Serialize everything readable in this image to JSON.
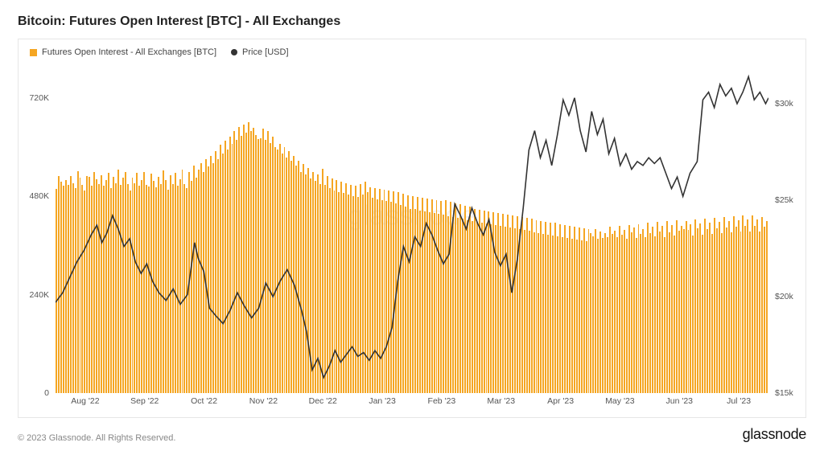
{
  "title": "Bitcoin: Futures Open Interest [BTC] - All Exchanges",
  "legend": {
    "series1": "Futures Open Interest - All Exchanges [BTC]",
    "series2": "Price [USD]"
  },
  "chart": {
    "type": "bar+line",
    "bar_color": "#f5a623",
    "line_color": "#333333",
    "line_width": 1.6,
    "background_color": "#ffffff",
    "border_color": "#e6e6e6",
    "grid_color": "#f0f0f0",
    "watermark": "glassnode",
    "font_family": "sans-serif",
    "title_fontsize": 16,
    "axis_fontsize": 10.5,
    "y_left": {
      "min": 0,
      "max": 800,
      "ticks": [
        {
          "v": 0,
          "label": "0"
        },
        {
          "v": 240,
          "label": "240K"
        },
        {
          "v": 480,
          "label": "480K"
        },
        {
          "v": 720,
          "label": "720K"
        }
      ]
    },
    "y_right": {
      "min": 15,
      "max": 32,
      "ticks": [
        {
          "v": 15,
          "label": "$15k"
        },
        {
          "v": 20,
          "label": "$20k"
        },
        {
          "v": 25,
          "label": "$25k"
        },
        {
          "v": 30,
          "label": "$30k"
        }
      ]
    },
    "x_labels": [
      "Aug '22",
      "Sep '22",
      "Oct '22",
      "Nov '22",
      "Dec '22",
      "Jan '23",
      "Feb '23",
      "Mar '23",
      "Apr '23",
      "May '23",
      "Jun '23",
      "Jul '23"
    ],
    "bars": [
      498,
      530,
      515,
      505,
      520,
      508,
      530,
      512,
      500,
      542,
      525,
      508,
      495,
      530,
      528,
      505,
      540,
      522,
      510,
      532,
      505,
      520,
      538,
      500,
      528,
      512,
      545,
      507,
      525,
      540,
      510,
      495,
      525,
      512,
      538,
      505,
      520,
      540,
      508,
      503,
      535,
      518,
      502,
      528,
      510,
      543,
      520,
      497,
      532,
      510,
      538,
      506,
      522,
      545,
      510,
      500,
      540,
      518,
      555,
      525,
      545,
      560,
      540,
      570,
      552,
      578,
      560,
      590,
      570,
      605,
      584,
      615,
      595,
      625,
      608,
      640,
      618,
      650,
      628,
      655,
      635,
      660,
      640,
      648,
      630,
      620,
      622,
      645,
      618,
      640,
      610,
      625,
      600,
      595,
      608,
      584,
      600,
      575,
      590,
      566,
      578,
      554,
      566,
      540,
      558,
      534,
      550,
      524,
      540,
      518,
      534,
      510,
      548,
      508,
      530,
      500,
      524,
      494,
      520,
      490,
      516,
      488,
      512,
      484,
      508,
      480,
      506,
      478,
      510,
      484,
      516,
      490,
      502,
      476,
      500,
      472,
      498,
      470,
      496,
      468,
      494,
      466,
      492,
      462,
      490,
      458,
      486,
      454,
      482,
      450,
      480,
      450,
      478,
      446,
      476,
      444,
      474,
      442,
      472,
      440,
      470,
      438,
      468,
      436,
      470,
      432,
      466,
      430,
      462,
      428,
      460,
      426,
      456,
      422,
      454,
      420,
      450,
      418,
      448,
      416,
      446,
      414,
      444,
      412,
      442,
      410,
      440,
      408,
      438,
      406,
      436,
      404,
      434,
      402,
      432,
      400,
      430,
      398,
      428,
      396,
      425,
      393,
      422,
      390,
      420,
      388,
      418,
      386,
      416,
      384,
      415,
      382,
      412,
      380,
      410,
      378,
      408,
      376,
      406,
      374,
      404,
      372,
      402,
      370,
      400,
      390,
      382,
      400,
      376,
      395,
      378,
      390,
      380,
      405,
      388,
      396,
      380,
      408,
      386,
      398,
      376,
      410,
      392,
      404,
      378,
      412,
      388,
      400,
      380,
      415,
      390,
      406,
      382,
      418,
      394,
      408,
      380,
      420,
      392,
      410,
      384,
      422,
      396,
      408,
      400,
      420,
      398,
      412,
      384,
      424,
      402,
      414,
      386,
      426,
      400,
      416,
      388,
      428,
      402,
      418,
      390,
      430,
      404,
      420,
      392,
      432,
      406,
      422,
      394,
      434,
      408,
      424,
      394,
      434,
      408,
      424,
      394,
      430,
      406,
      420
    ],
    "price": [
      [
        0.0,
        19.7
      ],
      [
        0.01,
        20.2
      ],
      [
        0.02,
        21.0
      ],
      [
        0.03,
        21.8
      ],
      [
        0.04,
        22.4
      ],
      [
        0.05,
        23.2
      ],
      [
        0.058,
        23.7
      ],
      [
        0.065,
        22.8
      ],
      [
        0.072,
        23.3
      ],
      [
        0.08,
        24.2
      ],
      [
        0.088,
        23.5
      ],
      [
        0.096,
        22.6
      ],
      [
        0.104,
        23.0
      ],
      [
        0.112,
        21.8
      ],
      [
        0.12,
        21.2
      ],
      [
        0.128,
        21.7
      ],
      [
        0.136,
        20.8
      ],
      [
        0.145,
        20.2
      ],
      [
        0.155,
        19.8
      ],
      [
        0.165,
        20.4
      ],
      [
        0.175,
        19.6
      ],
      [
        0.185,
        20.1
      ],
      [
        0.195,
        22.8
      ],
      [
        0.2,
        22.0
      ],
      [
        0.208,
        21.3
      ],
      [
        0.216,
        19.4
      ],
      [
        0.225,
        19.0
      ],
      [
        0.235,
        18.6
      ],
      [
        0.245,
        19.3
      ],
      [
        0.255,
        20.2
      ],
      [
        0.265,
        19.5
      ],
      [
        0.275,
        18.9
      ],
      [
        0.285,
        19.4
      ],
      [
        0.295,
        20.7
      ],
      [
        0.305,
        20.0
      ],
      [
        0.315,
        20.8
      ],
      [
        0.325,
        21.4
      ],
      [
        0.335,
        20.6
      ],
      [
        0.345,
        19.3
      ],
      [
        0.352,
        18.2
      ],
      [
        0.36,
        16.2
      ],
      [
        0.368,
        16.8
      ],
      [
        0.376,
        15.8
      ],
      [
        0.384,
        16.4
      ],
      [
        0.392,
        17.2
      ],
      [
        0.4,
        16.6
      ],
      [
        0.408,
        17.0
      ],
      [
        0.416,
        17.4
      ],
      [
        0.424,
        16.9
      ],
      [
        0.432,
        17.1
      ],
      [
        0.44,
        16.7
      ],
      [
        0.448,
        17.2
      ],
      [
        0.456,
        16.8
      ],
      [
        0.464,
        17.4
      ],
      [
        0.472,
        18.4
      ],
      [
        0.48,
        20.8
      ],
      [
        0.488,
        22.6
      ],
      [
        0.496,
        21.8
      ],
      [
        0.504,
        23.1
      ],
      [
        0.512,
        22.6
      ],
      [
        0.52,
        23.8
      ],
      [
        0.528,
        23.2
      ],
      [
        0.536,
        22.4
      ],
      [
        0.544,
        21.7
      ],
      [
        0.552,
        22.2
      ],
      [
        0.56,
        24.8
      ],
      [
        0.568,
        24.2
      ],
      [
        0.576,
        23.5
      ],
      [
        0.584,
        24.6
      ],
      [
        0.592,
        23.8
      ],
      [
        0.6,
        23.2
      ],
      [
        0.608,
        24.0
      ],
      [
        0.616,
        22.3
      ],
      [
        0.624,
        21.6
      ],
      [
        0.632,
        22.2
      ],
      [
        0.64,
        20.2
      ],
      [
        0.648,
        22.0
      ],
      [
        0.656,
        24.6
      ],
      [
        0.664,
        27.6
      ],
      [
        0.672,
        28.6
      ],
      [
        0.68,
        27.2
      ],
      [
        0.688,
        28.1
      ],
      [
        0.696,
        26.8
      ],
      [
        0.704,
        28.4
      ],
      [
        0.712,
        30.2
      ],
      [
        0.72,
        29.4
      ],
      [
        0.728,
        30.3
      ],
      [
        0.736,
        28.6
      ],
      [
        0.744,
        27.5
      ],
      [
        0.752,
        29.6
      ],
      [
        0.76,
        28.4
      ],
      [
        0.768,
        29.2
      ],
      [
        0.776,
        27.4
      ],
      [
        0.784,
        28.2
      ],
      [
        0.792,
        26.8
      ],
      [
        0.8,
        27.4
      ],
      [
        0.808,
        26.6
      ],
      [
        0.816,
        27.0
      ],
      [
        0.824,
        26.8
      ],
      [
        0.832,
        27.2
      ],
      [
        0.84,
        26.9
      ],
      [
        0.848,
        27.2
      ],
      [
        0.856,
        26.4
      ],
      [
        0.864,
        25.6
      ],
      [
        0.872,
        26.2
      ],
      [
        0.88,
        25.2
      ],
      [
        0.89,
        26.4
      ],
      [
        0.9,
        27.0
      ],
      [
        0.908,
        30.2
      ],
      [
        0.916,
        30.6
      ],
      [
        0.924,
        29.8
      ],
      [
        0.932,
        31.0
      ],
      [
        0.94,
        30.4
      ],
      [
        0.948,
        30.8
      ],
      [
        0.956,
        30.0
      ],
      [
        0.964,
        30.6
      ],
      [
        0.972,
        31.4
      ],
      [
        0.98,
        30.2
      ],
      [
        0.988,
        30.6
      ],
      [
        0.996,
        30.0
      ],
      [
        1.0,
        30.3
      ]
    ]
  },
  "footer": {
    "copyright": "© 2023 Glassnode. All Rights Reserved.",
    "brand": "glassnode"
  }
}
